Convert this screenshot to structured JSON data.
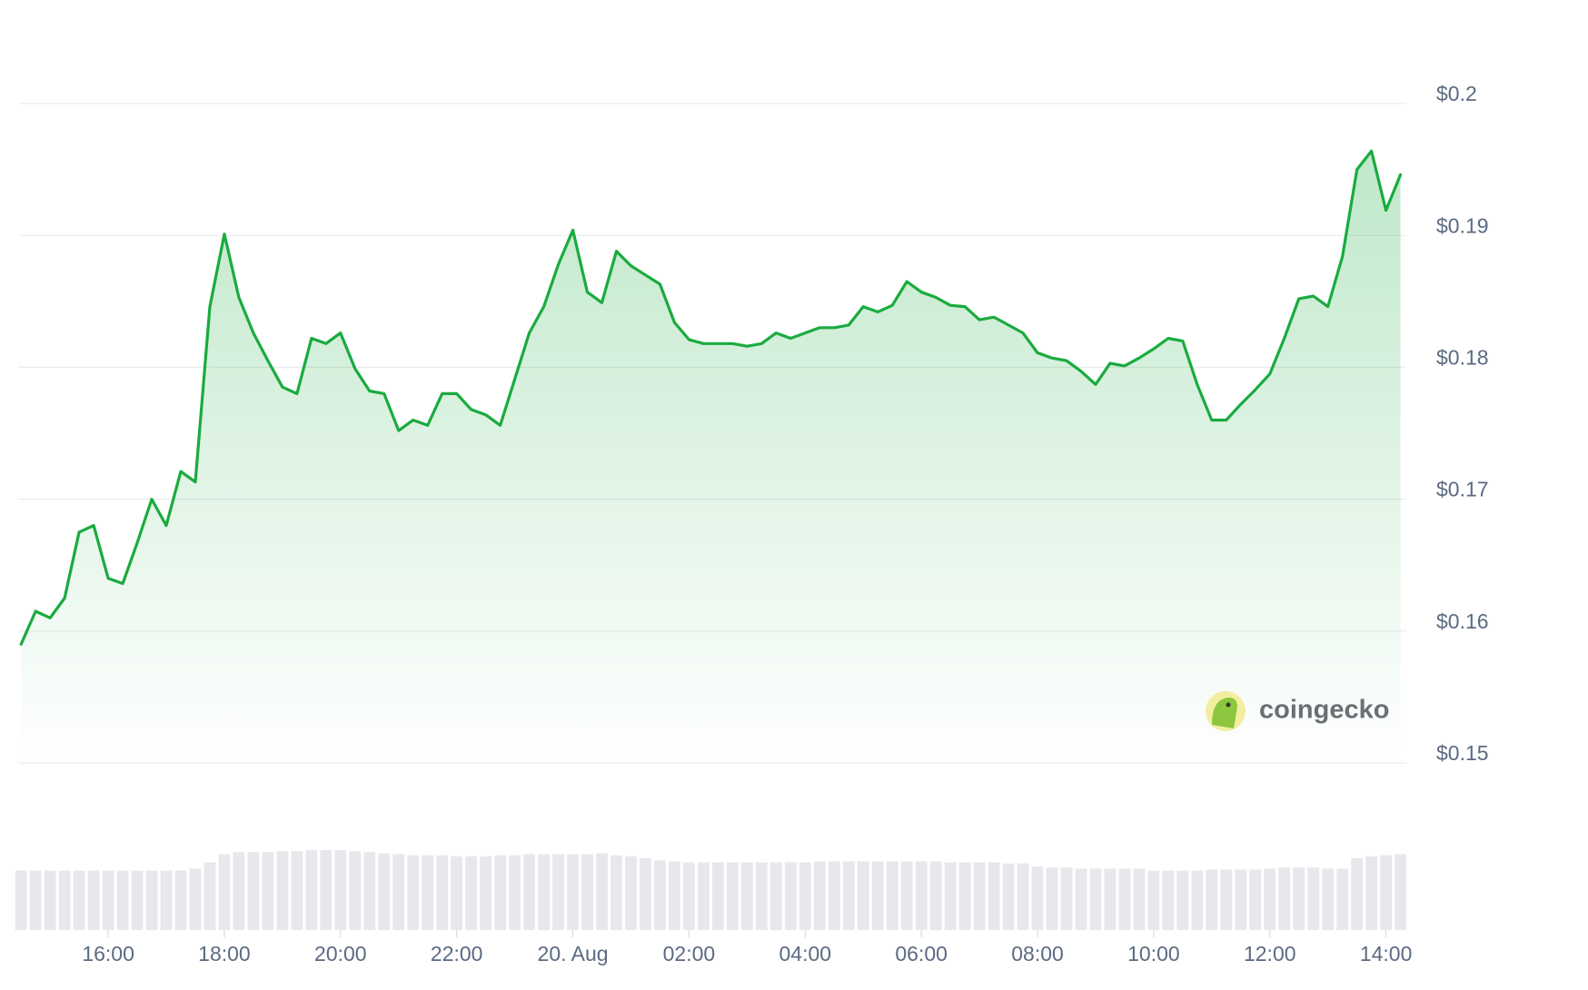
{
  "chart_data": {
    "type": "line",
    "color": "#1aab3f",
    "volume_color": "#e6e8ec",
    "grid": true,
    "watermark": "coingecko",
    "xlim": [
      14.45,
      38.35
    ],
    "xticks": [
      {
        "value": 16,
        "label": "16:00"
      },
      {
        "value": 18,
        "label": "18:00"
      },
      {
        "value": 20,
        "label": "20:00"
      },
      {
        "value": 22,
        "label": "22:00"
      },
      {
        "value": 24,
        "label": "20. Aug"
      },
      {
        "value": 26,
        "label": "02:00"
      },
      {
        "value": 28,
        "label": "04:00"
      },
      {
        "value": 30,
        "label": "06:00"
      },
      {
        "value": 32,
        "label": "08:00"
      },
      {
        "value": 34,
        "label": "10:00"
      },
      {
        "value": 36,
        "label": "12:00"
      },
      {
        "value": 38,
        "label": "14:00"
      }
    ],
    "ylim": [
      0.15,
      0.2
    ],
    "yticks": [
      {
        "value": 0.15,
        "label": "$0.15"
      },
      {
        "value": 0.16,
        "label": "$0.16"
      },
      {
        "value": 0.17,
        "label": "$0.17"
      },
      {
        "value": 0.18,
        "label": "$0.18"
      },
      {
        "value": 0.19,
        "label": "$0.19"
      },
      {
        "value": 0.2,
        "label": "$0.2"
      }
    ],
    "x": [
      14.5,
      14.75,
      15,
      15.25,
      15.5,
      15.75,
      16,
      16.25,
      16.5,
      16.75,
      17,
      17.25,
      17.5,
      17.75,
      18,
      18.25,
      18.5,
      18.75,
      19,
      19.25,
      19.5,
      19.75,
      20,
      20.25,
      20.5,
      20.75,
      21,
      21.25,
      21.5,
      21.75,
      22,
      22.25,
      22.5,
      22.75,
      23,
      23.25,
      23.5,
      23.75,
      24,
      24.25,
      24.5,
      24.75,
      25,
      25.25,
      25.5,
      25.75,
      26,
      26.25,
      26.5,
      26.75,
      27,
      27.25,
      27.5,
      27.75,
      28,
      28.25,
      28.5,
      28.75,
      29,
      29.25,
      29.5,
      29.75,
      30,
      30.25,
      30.5,
      30.75,
      31,
      31.25,
      31.5,
      31.75,
      32,
      32.25,
      32.5,
      32.75,
      33,
      33.25,
      33.5,
      33.75,
      34,
      34.25,
      34.5,
      34.75,
      35,
      35.25,
      35.5,
      35.75,
      36,
      36.25,
      36.5,
      36.75,
      37,
      37.25,
      37.5,
      37.75,
      38,
      38.25
    ],
    "series": [
      {
        "values": [
          0.159,
          0.1615,
          0.161,
          0.1625,
          0.1675,
          0.168,
          0.164,
          0.1636,
          0.1667,
          0.17,
          0.168,
          0.1721,
          0.1713,
          0.1846,
          0.1901,
          0.1853,
          0.1826,
          0.1805,
          0.1785,
          0.178,
          0.1822,
          0.1818,
          0.1826,
          0.1799,
          0.1782,
          0.178,
          0.1752,
          0.176,
          0.1756,
          0.178,
          0.178,
          0.1768,
          0.1764,
          0.1756,
          0.1791,
          0.1826,
          0.1846,
          0.1878,
          0.1904,
          0.1857,
          0.1849,
          0.1888,
          0.1877,
          0.187,
          0.1863,
          0.1834,
          0.1821,
          0.1818,
          0.1818,
          0.1818,
          0.1816,
          0.1818,
          0.1826,
          0.1822,
          0.1826,
          0.183,
          0.183,
          0.1832,
          0.1846,
          0.1842,
          0.1847,
          0.1865,
          0.1857,
          0.1853,
          0.1847,
          0.1846,
          0.1836,
          0.1838,
          0.1832,
          0.1826,
          0.1811,
          0.1807,
          0.1805,
          0.1797,
          0.1787,
          0.1803,
          0.1801,
          0.1807,
          0.1814,
          0.1822,
          0.182,
          0.1787,
          0.176,
          0.176,
          0.1772,
          0.1783,
          0.1795,
          0.1822,
          0.1852,
          0.1854,
          0.1846,
          0.1884,
          0.195,
          0.1964,
          0.1919,
          0.1946
        ]
      }
    ],
    "volume": [
      58,
      58,
      58,
      58,
      58,
      58,
      58,
      58,
      58,
      58,
      58,
      58,
      60,
      66,
      74,
      76,
      76,
      76,
      77,
      77,
      78,
      78,
      78,
      77,
      76,
      75,
      74,
      73,
      73,
      73,
      72,
      72,
      72,
      73,
      73,
      74,
      74,
      74,
      74,
      74,
      75,
      73,
      72,
      70,
      68,
      67,
      66,
      66,
      66,
      66,
      66,
      66,
      66,
      66,
      66,
      67,
      67,
      67,
      67,
      67,
      67,
      67,
      67,
      67,
      66,
      66,
      66,
      66,
      65,
      65,
      62,
      61,
      61,
      60,
      60,
      60,
      60,
      60,
      58,
      58,
      58,
      58,
      59,
      59,
      59,
      59,
      60,
      61,
      61,
      61,
      60,
      60,
      70,
      72,
      73,
      74
    ]
  }
}
